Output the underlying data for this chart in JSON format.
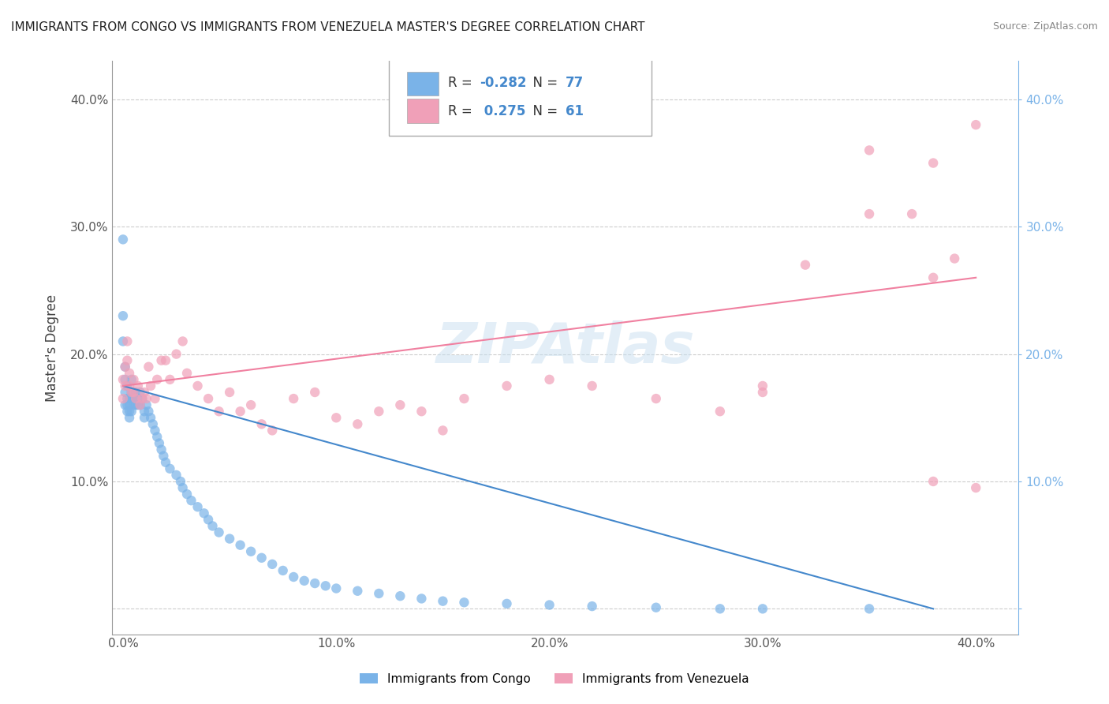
{
  "title": "IMMIGRANTS FROM CONGO VS IMMIGRANTS FROM VENEZUELA MASTER'S DEGREE CORRELATION CHART",
  "source": "Source: ZipAtlas.com",
  "xlabel_bottom": "",
  "ylabel": "Master's Degree",
  "watermark": "ZIPAtlas",
  "legend_entries": [
    {
      "label": "R = -0.282  N = 77",
      "color": "#a8c8f0"
    },
    {
      "label": "R =  0.275  N = 61",
      "color": "#f4a8b8"
    }
  ],
  "x_ticks": [
    0.0,
    0.1,
    0.2,
    0.3,
    0.4
  ],
  "x_tick_labels": [
    "0.0%",
    "10.0%",
    "20.0%",
    "30.0%",
    "40.0%"
  ],
  "y_ticks": [
    0.0,
    0.1,
    0.2,
    0.3,
    0.4
  ],
  "y_tick_labels_left": [
    "",
    "10.0%",
    "20.0%",
    "30.0%",
    "40.0%"
  ],
  "y_tick_labels_right": [
    "",
    "10.0%",
    "20.0%",
    "30.0%",
    "40.0%"
  ],
  "xlim": [
    -0.005,
    0.42
  ],
  "ylim": [
    -0.02,
    0.43
  ],
  "congo_color": "#7ab3e8",
  "venezuela_color": "#f0a0b8",
  "congo_line_color": "#4488cc",
  "venezuela_line_color": "#f080a0",
  "background_color": "#ffffff",
  "congo_x": [
    0.0,
    0.0,
    0.0,
    0.001,
    0.001,
    0.001,
    0.001,
    0.002,
    0.002,
    0.002,
    0.002,
    0.003,
    0.003,
    0.003,
    0.003,
    0.004,
    0.004,
    0.004,
    0.004,
    0.005,
    0.005,
    0.005,
    0.006,
    0.006,
    0.006,
    0.007,
    0.007,
    0.008,
    0.008,
    0.009,
    0.01,
    0.01,
    0.011,
    0.012,
    0.013,
    0.014,
    0.015,
    0.016,
    0.017,
    0.018,
    0.019,
    0.02,
    0.022,
    0.025,
    0.027,
    0.028,
    0.03,
    0.032,
    0.035,
    0.038,
    0.04,
    0.042,
    0.045,
    0.05,
    0.055,
    0.06,
    0.065,
    0.07,
    0.075,
    0.08,
    0.085,
    0.09,
    0.095,
    0.1,
    0.11,
    0.12,
    0.13,
    0.14,
    0.15,
    0.16,
    0.18,
    0.2,
    0.22,
    0.25,
    0.28,
    0.3,
    0.35
  ],
  "congo_y": [
    0.29,
    0.23,
    0.21,
    0.19,
    0.18,
    0.17,
    0.16,
    0.175,
    0.165,
    0.16,
    0.155,
    0.165,
    0.16,
    0.155,
    0.15,
    0.18,
    0.17,
    0.165,
    0.155,
    0.17,
    0.165,
    0.16,
    0.17,
    0.165,
    0.16,
    0.165,
    0.16,
    0.17,
    0.16,
    0.165,
    0.155,
    0.15,
    0.16,
    0.155,
    0.15,
    0.145,
    0.14,
    0.135,
    0.13,
    0.125,
    0.12,
    0.115,
    0.11,
    0.105,
    0.1,
    0.095,
    0.09,
    0.085,
    0.08,
    0.075,
    0.07,
    0.065,
    0.06,
    0.055,
    0.05,
    0.045,
    0.04,
    0.035,
    0.03,
    0.025,
    0.022,
    0.02,
    0.018,
    0.016,
    0.014,
    0.012,
    0.01,
    0.008,
    0.006,
    0.005,
    0.004,
    0.003,
    0.002,
    0.001,
    0.0,
    0.0,
    0.0
  ],
  "venezuela_x": [
    0.0,
    0.0,
    0.001,
    0.001,
    0.002,
    0.002,
    0.003,
    0.003,
    0.004,
    0.005,
    0.005,
    0.006,
    0.007,
    0.008,
    0.009,
    0.01,
    0.011,
    0.012,
    0.013,
    0.015,
    0.016,
    0.018,
    0.02,
    0.022,
    0.025,
    0.028,
    0.03,
    0.035,
    0.04,
    0.045,
    0.05,
    0.055,
    0.06,
    0.065,
    0.07,
    0.08,
    0.09,
    0.1,
    0.11,
    0.12,
    0.13,
    0.14,
    0.15,
    0.16,
    0.18,
    0.2,
    0.22,
    0.25,
    0.28,
    0.3,
    0.32,
    0.35,
    0.37,
    0.38,
    0.39,
    0.4,
    0.38,
    0.3,
    0.35,
    0.4,
    0.38
  ],
  "venezuela_y": [
    0.18,
    0.165,
    0.19,
    0.175,
    0.21,
    0.195,
    0.185,
    0.175,
    0.17,
    0.18,
    0.17,
    0.165,
    0.175,
    0.16,
    0.165,
    0.17,
    0.165,
    0.19,
    0.175,
    0.165,
    0.18,
    0.195,
    0.195,
    0.18,
    0.2,
    0.21,
    0.185,
    0.175,
    0.165,
    0.155,
    0.17,
    0.155,
    0.16,
    0.145,
    0.14,
    0.165,
    0.17,
    0.15,
    0.145,
    0.155,
    0.16,
    0.155,
    0.14,
    0.165,
    0.175,
    0.18,
    0.175,
    0.165,
    0.155,
    0.175,
    0.27,
    0.36,
    0.31,
    0.35,
    0.275,
    0.38,
    0.1,
    0.17,
    0.31,
    0.095,
    0.26
  ],
  "congo_line_x": [
    0.0,
    0.38
  ],
  "congo_line_y": [
    0.175,
    0.0
  ],
  "venezuela_line_x": [
    0.0,
    0.4
  ],
  "venezuela_line_y": [
    0.175,
    0.26
  ],
  "r_congo": "-0.282",
  "n_congo": "77",
  "r_venezuela": "0.275",
  "n_venezuela": "61"
}
